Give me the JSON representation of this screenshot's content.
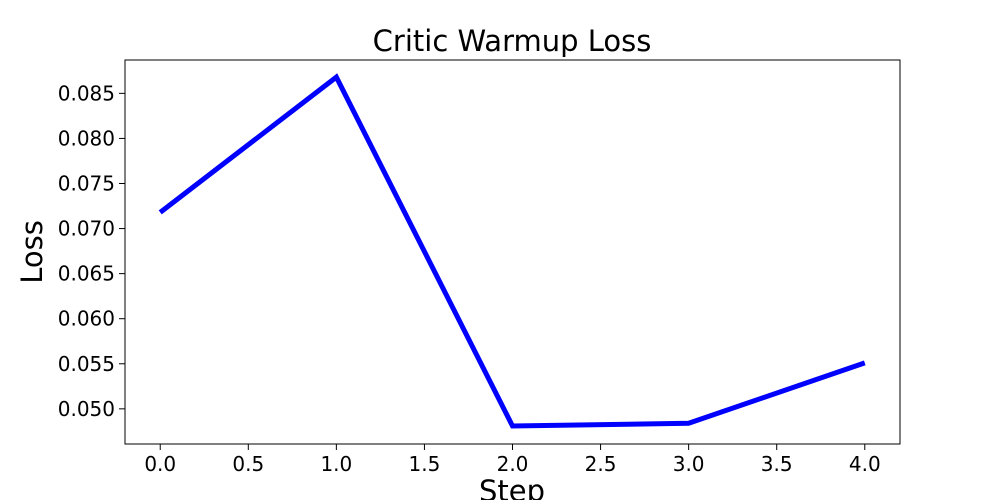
{
  "chart_data": {
    "type": "line",
    "title": "Critic Warmup Loss",
    "xlabel": "Step",
    "ylabel": "Loss",
    "x": [
      0,
      1,
      2,
      3,
      4
    ],
    "series": [
      {
        "values": [
          0.0718,
          0.0868,
          0.0481,
          0.0484,
          0.0551
        ],
        "color": "#0000ff"
      }
    ],
    "xlim": [
      -0.2,
      4.2
    ],
    "ylim": [
      0.0461,
      0.0887
    ],
    "xticks": [
      0,
      0.5,
      1,
      1.5,
      2,
      2.5,
      3,
      3.5,
      4
    ],
    "xtick_labels": [
      "0.0",
      "0.5",
      "1.0",
      "1.5",
      "2.0",
      "2.5",
      "3.0",
      "3.5",
      "4.0"
    ],
    "yticks": [
      0.05,
      0.055,
      0.06,
      0.065,
      0.07,
      0.075,
      0.08,
      0.085
    ],
    "ytick_labels": [
      "0.050",
      "0.055",
      "0.060",
      "0.065",
      "0.070",
      "0.075",
      "0.080",
      "0.085"
    ],
    "grid": false,
    "legend": "none"
  }
}
